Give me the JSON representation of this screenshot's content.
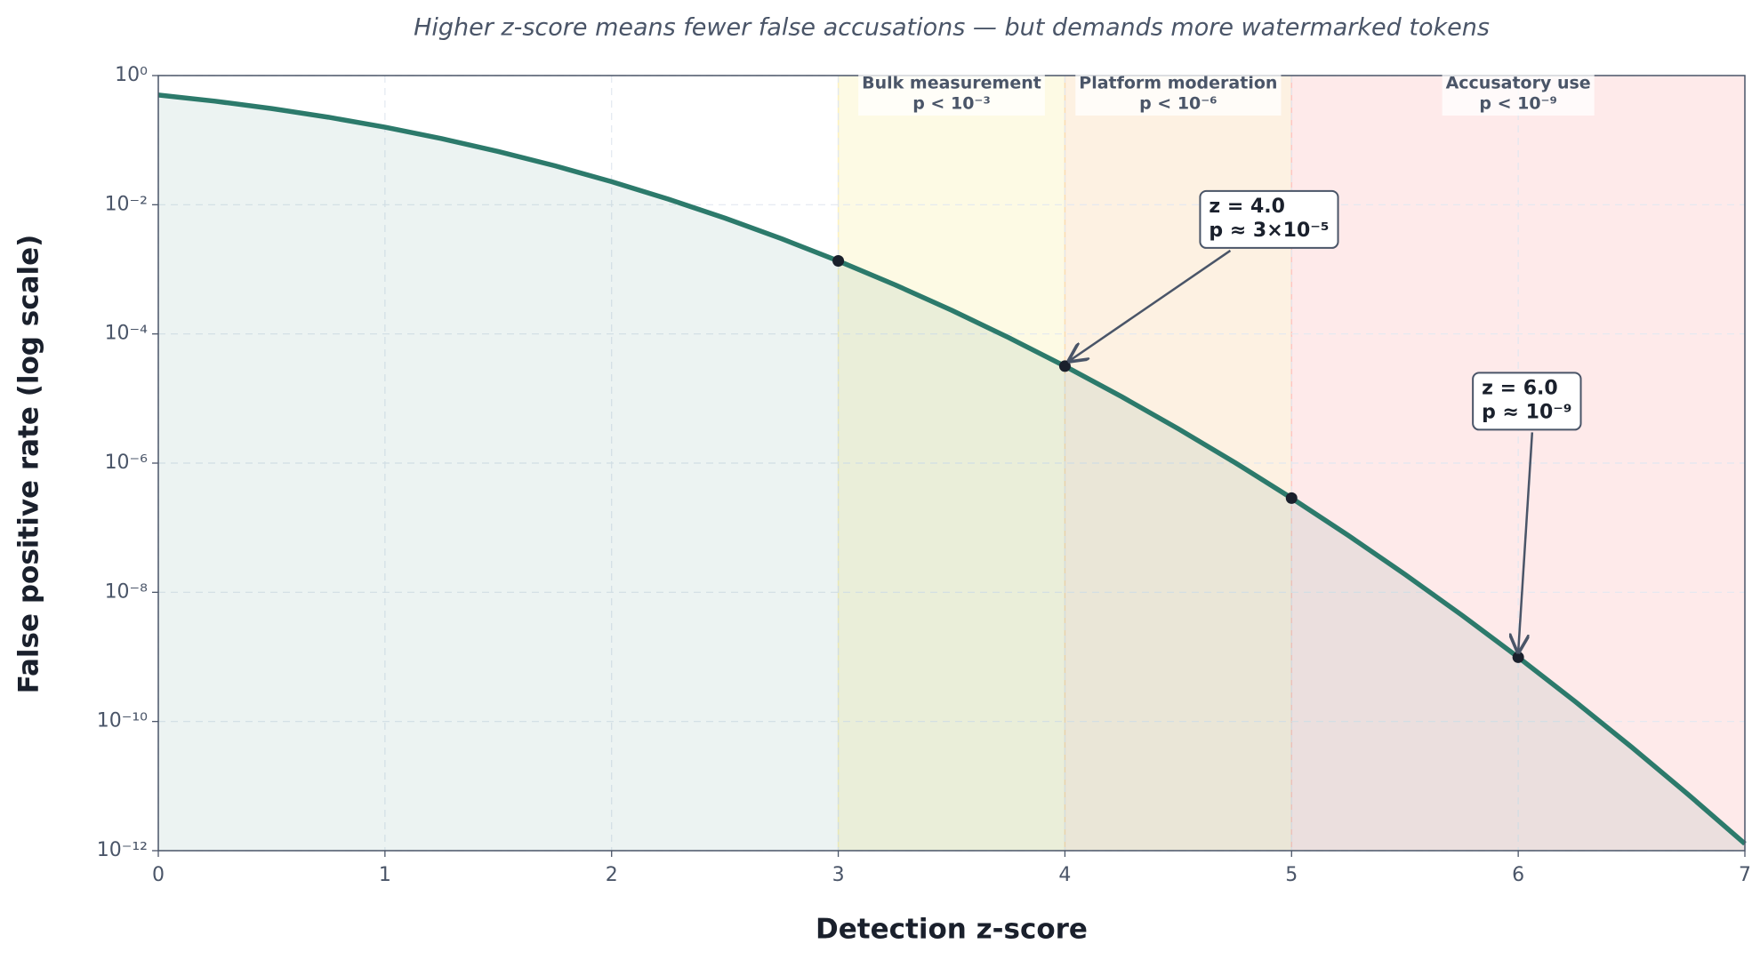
{
  "chart_data": {
    "type": "line",
    "title": "Higher z-score means fewer false accusations — but demands more watermarked tokens",
    "xlabel": "Detection z-score",
    "ylabel": "False positive rate (log scale)",
    "x": [
      0,
      0.25,
      0.5,
      0.75,
      1,
      1.25,
      1.5,
      1.75,
      2,
      2.25,
      2.5,
      2.75,
      3,
      3.25,
      3.5,
      3.75,
      4,
      4.25,
      4.5,
      4.75,
      5,
      5.25,
      5.5,
      5.75,
      6,
      6.25,
      6.5,
      6.75,
      7
    ],
    "values": [
      0.5,
      0.4013,
      0.3085,
      0.2266,
      0.1587,
      0.1056,
      0.0668,
      0.0401,
      0.02275,
      0.01222,
      0.00621,
      0.00298,
      0.00135,
      0.000577,
      0.000233,
      8.84e-05,
      3.17e-05,
      1.07e-05,
      3.4e-06,
      1.02e-06,
      2.87e-07,
      7.6e-08,
      1.9e-08,
      4.46e-09,
      9.87e-10,
      2.05e-10,
      4.02e-11,
      7.4e-12,
      1.28e-12
    ],
    "color": "#2c7a6b",
    "fill_color": "#2c7a6b",
    "points": {
      "x": [
        3,
        4,
        5,
        6
      ],
      "values": [
        0.00135,
        3.17e-05,
        2.87e-07,
        9.87e-10
      ],
      "color": "#1a202c"
    },
    "regions": [
      {
        "from": 3,
        "to": 4,
        "color": "#f6e05e",
        "label": "Bulk measurement",
        "threshold": "p < 10⁻³"
      },
      {
        "from": 4,
        "to": 5,
        "color": "#f6ad55",
        "label": "Platform moderation",
        "threshold": "p < 10⁻⁶"
      },
      {
        "from": 5,
        "to": 7,
        "color": "#fc8181",
        "label": "Accusatory use",
        "threshold": "p < 10⁻⁹"
      }
    ],
    "annotations": [
      {
        "lines": [
          "z = 4.0",
          "p ≈ 3×10⁻⁵"
        ],
        "x": 4,
        "y": 3.17e-05
      },
      {
        "lines": [
          "z = 6.0",
          "p ≈ 10⁻⁹"
        ],
        "x": 6,
        "y": 9.87e-10
      }
    ],
    "log_y": true,
    "grid": true,
    "xlim": [
      0,
      7
    ],
    "ylim": [
      1e-12,
      1
    ],
    "xticks": [
      0,
      1,
      2,
      3,
      4,
      5,
      6,
      7
    ],
    "yticks": [
      {
        "value": 1,
        "label": "10⁰"
      },
      {
        "value": 0.01,
        "label": "10⁻²"
      },
      {
        "value": 0.0001,
        "label": "10⁻⁴"
      },
      {
        "value": 1e-06,
        "label": "10⁻⁶"
      },
      {
        "value": 1e-08,
        "label": "10⁻⁸"
      },
      {
        "value": 1e-10,
        "label": "10⁻¹⁰"
      },
      {
        "value": 1e-12,
        "label": "10⁻¹²"
      }
    ]
  }
}
